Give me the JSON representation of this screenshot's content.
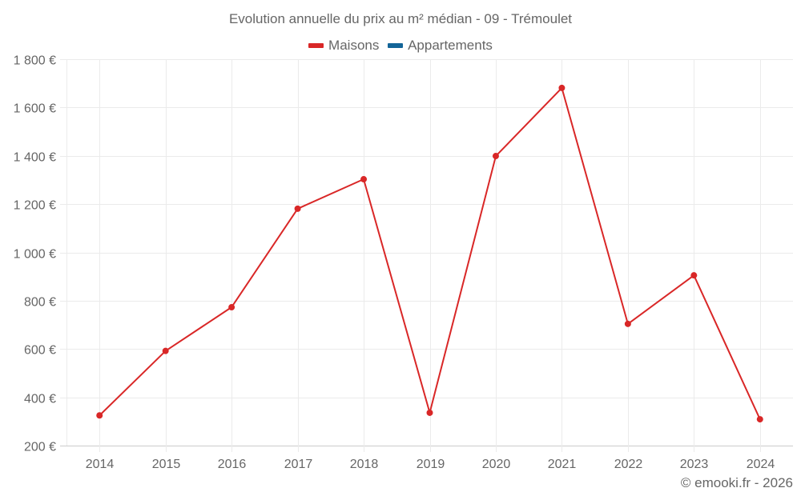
{
  "title": "Evolution annuelle du prix au m² médian - 09 - Trémoulet",
  "legend": [
    {
      "label": "Maisons",
      "color": "#d92727"
    },
    {
      "label": "Appartements",
      "color": "#136598"
    }
  ],
  "credit": "© emooki.fr - 2026",
  "chart_data": {
    "type": "line",
    "title": "Evolution annuelle du prix au m² médian - 09 - Trémoulet",
    "xlabel": "",
    "ylabel": "",
    "categories": [
      "2014",
      "2015",
      "2016",
      "2017",
      "2018",
      "2019",
      "2020",
      "2021",
      "2022",
      "2023",
      "2024"
    ],
    "series": [
      {
        "name": "Maisons",
        "color": "#d92727",
        "values": [
          325,
          592,
          773,
          1181,
          1303,
          336,
          1399,
          1681,
          704,
          905,
          309
        ]
      },
      {
        "name": "Appartements",
        "color": "#136598",
        "values": []
      }
    ],
    "ylim": [
      200,
      1800
    ],
    "yticks": [
      200,
      400,
      600,
      800,
      1000,
      1200,
      1400,
      1600,
      1800
    ],
    "ytick_labels": [
      "200 €",
      "400 €",
      "600 €",
      "800 €",
      "1 000 €",
      "1 200 €",
      "1 400 €",
      "1 600 €",
      "1 800 €"
    ],
    "grid": true,
    "legend_position": "top"
  }
}
